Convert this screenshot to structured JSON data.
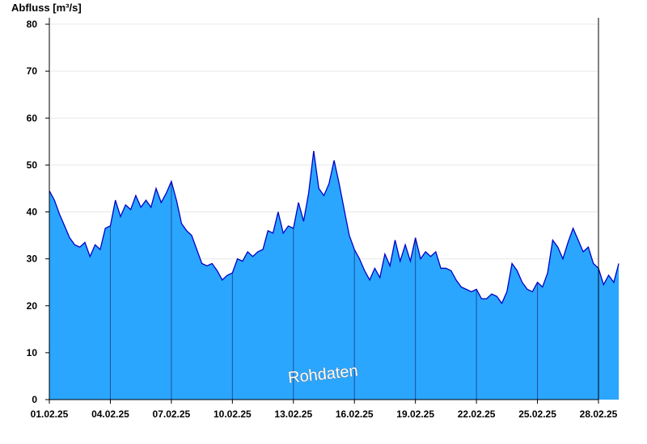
{
  "chart_data": {
    "type": "area",
    "ylabel": "Abfluss [m³/s]",
    "ylim": [
      0,
      80
    ],
    "yticks": [
      0,
      10,
      20,
      30,
      40,
      50,
      60,
      70,
      80
    ],
    "x_range": [
      "01.02.25",
      "28.02.25"
    ],
    "xticks": [
      "01.02.25",
      "04.02.25",
      "07.02.25",
      "10.02.25",
      "13.02.25",
      "16.02.25",
      "19.02.25",
      "22.02.25",
      "25.02.25",
      "28.02.25"
    ],
    "watermark": "Rohdaten",
    "grid": "horizontal",
    "colors": {
      "fill": "#2aa6ff",
      "line": "#0000c8",
      "grid": "#e8e8e8",
      "day_line": "#1f4f9a"
    },
    "x_day": [
      0.0,
      0.25,
      0.5,
      0.75,
      1.0,
      1.25,
      1.5,
      1.75,
      2.0,
      2.25,
      2.5,
      2.75,
      3.0,
      3.25,
      3.5,
      3.75,
      4.0,
      4.25,
      4.5,
      4.75,
      5.0,
      5.25,
      5.5,
      5.75,
      6.0,
      6.25,
      6.5,
      6.75,
      7.0,
      7.25,
      7.5,
      7.75,
      8.0,
      8.25,
      8.5,
      8.75,
      9.0,
      9.25,
      9.5,
      9.75,
      10.0,
      10.25,
      10.5,
      10.75,
      11.0,
      11.25,
      11.5,
      11.75,
      12.0,
      12.25,
      12.5,
      12.75,
      13.0,
      13.25,
      13.5,
      13.75,
      14.0,
      14.25,
      14.5,
      14.75,
      15.0,
      15.25,
      15.5,
      15.75,
      16.0,
      16.25,
      16.5,
      16.75,
      17.0,
      17.25,
      17.5,
      17.75,
      18.0,
      18.25,
      18.5,
      18.75,
      19.0,
      19.25,
      19.5,
      19.75,
      20.0,
      20.25,
      20.5,
      20.75,
      21.0,
      21.25,
      21.5,
      21.75,
      22.0,
      22.25,
      22.5,
      22.75,
      23.0,
      23.25,
      23.5,
      23.75,
      24.0,
      24.25,
      24.5,
      24.75,
      25.0,
      25.25,
      25.5,
      25.75,
      26.0,
      26.25,
      26.5,
      26.75,
      27.0,
      27.25,
      27.5,
      27.75,
      28.0
    ],
    "values": [
      44.5,
      42.5,
      39.5,
      37.0,
      34.5,
      33.0,
      32.5,
      33.5,
      30.5,
      33.0,
      32.0,
      36.5,
      37.0,
      42.5,
      39.0,
      41.5,
      40.5,
      43.5,
      41.0,
      42.5,
      41.0,
      45.0,
      42.0,
      44.0,
      46.5,
      42.5,
      37.5,
      36.0,
      35.0,
      32.0,
      29.0,
      28.5,
      29.0,
      27.5,
      25.5,
      26.5,
      27.0,
      30.0,
      29.5,
      31.5,
      30.5,
      31.5,
      32.0,
      36.0,
      35.5,
      40.0,
      35.5,
      37.0,
      36.5,
      42.0,
      38.0,
      44.0,
      53.0,
      45.0,
      43.5,
      46.0,
      51.0,
      46.0,
      40.5,
      35.0,
      32.0,
      30.0,
      27.5,
      25.5,
      28.0,
      26.0,
      31.0,
      28.5,
      34.0,
      29.5,
      33.0,
      29.5,
      34.5,
      30.0,
      31.5,
      30.5,
      31.5,
      28.0,
      28.0,
      27.5,
      25.5,
      24.0,
      23.5,
      23.0,
      23.5,
      21.5,
      21.5,
      22.5,
      22.0,
      20.5,
      23.0,
      29.0,
      27.5,
      25.0,
      23.5,
      23.0,
      25.0,
      24.0,
      27.0,
      34.0,
      32.5,
      30.0,
      33.5,
      36.5,
      34.0,
      31.5,
      32.5,
      29.0,
      28.0,
      24.5,
      26.5,
      25.0,
      29.0
    ]
  }
}
